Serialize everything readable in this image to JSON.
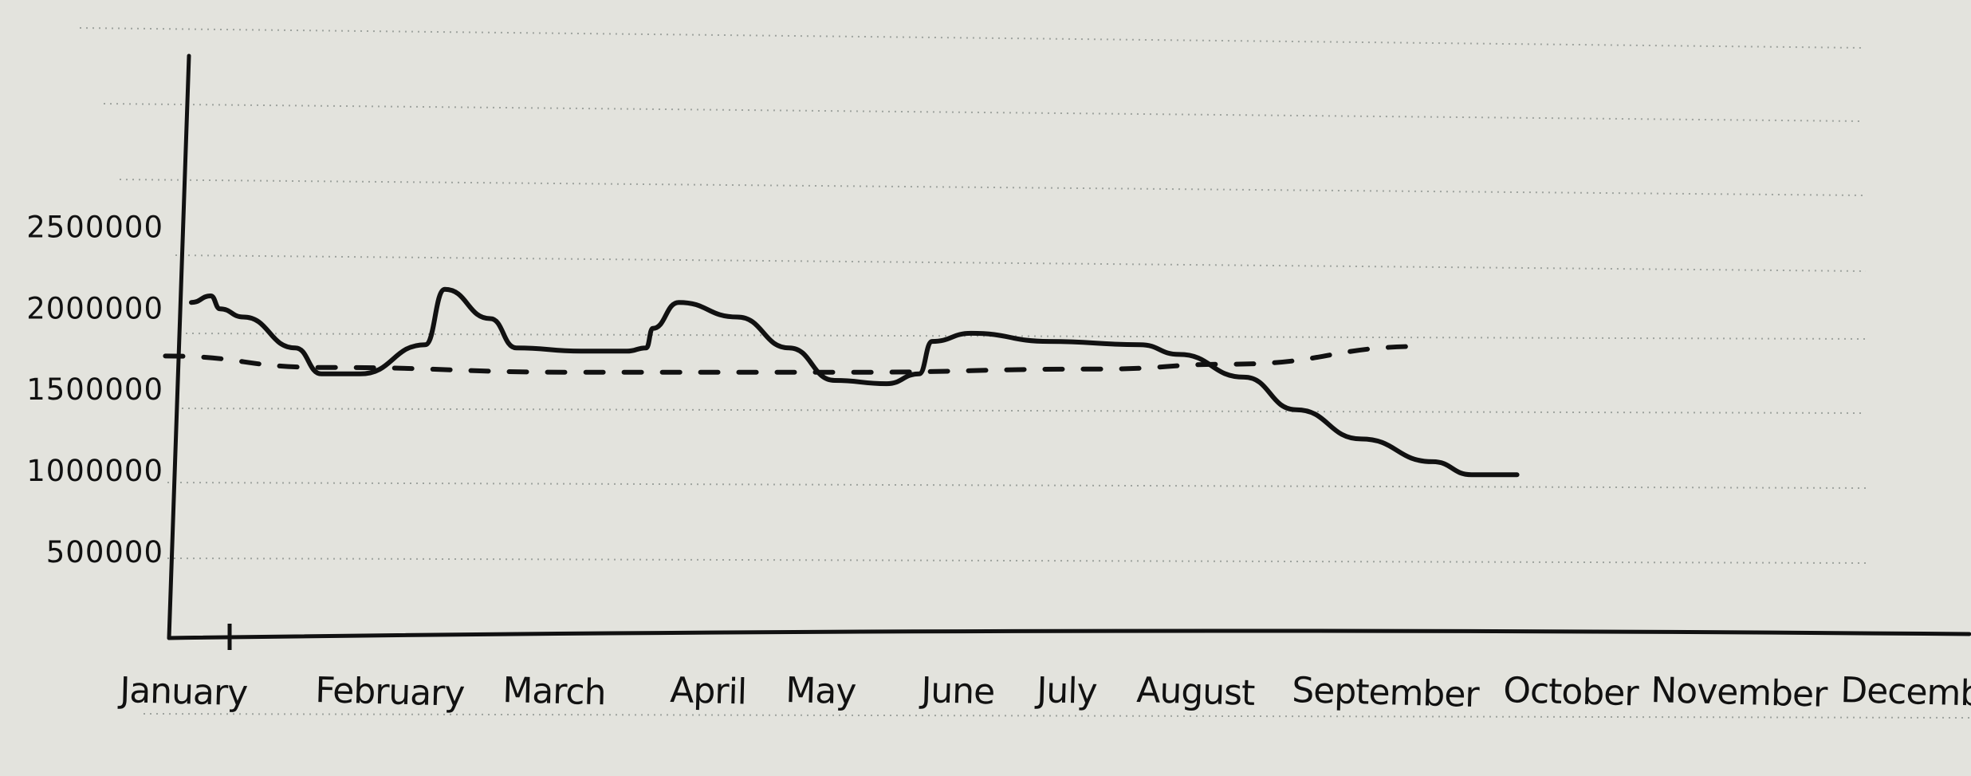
{
  "chart_data": {
    "type": "line",
    "title": "",
    "xlabel": "",
    "ylabel": "",
    "categories": [
      "January",
      "February",
      "March",
      "April",
      "May",
      "June",
      "July",
      "August",
      "September",
      "October",
      "November",
      "Decemb"
    ],
    "y_ticks": [
      {
        "value": 500000,
        "label": "500000"
      },
      {
        "value": 1000000,
        "label": "1000000"
      },
      {
        "value": 1500000,
        "label": "1500000"
      },
      {
        "value": 2000000,
        "label": "2000000"
      },
      {
        "value": 2500000,
        "label": "2500000"
      }
    ],
    "ylim": [
      0,
      3900000
    ],
    "grid": true,
    "legend": "none",
    "series": [
      {
        "style": "solid",
        "color": "#111111",
        "points": [
          [
            0.0,
            2040000
          ],
          [
            0.15,
            2080000
          ],
          [
            0.22,
            2000000
          ],
          [
            0.4,
            1950000
          ],
          [
            0.8,
            1760000
          ],
          [
            1.0,
            1600000
          ],
          [
            1.3,
            1600000
          ],
          [
            1.8,
            1780000
          ],
          [
            1.95,
            2120000
          ],
          [
            2.3,
            1940000
          ],
          [
            2.5,
            1760000
          ],
          [
            3.0,
            1740000
          ],
          [
            3.35,
            1740000
          ],
          [
            3.5,
            1760000
          ],
          [
            3.55,
            1880000
          ],
          [
            3.75,
            2040000
          ],
          [
            4.2,
            1950000
          ],
          [
            4.6,
            1760000
          ],
          [
            4.95,
            1560000
          ],
          [
            5.35,
            1540000
          ],
          [
            5.6,
            1600000
          ],
          [
            5.7,
            1800000
          ],
          [
            6.0,
            1850000
          ],
          [
            6.6,
            1800000
          ],
          [
            7.3,
            1780000
          ],
          [
            7.6,
            1720000
          ],
          [
            8.1,
            1580000
          ],
          [
            8.5,
            1380000
          ],
          [
            9.0,
            1200000
          ],
          [
            9.55,
            1060000
          ],
          [
            9.85,
            980000
          ],
          [
            10.2,
            980000
          ]
        ]
      },
      {
        "style": "dashed",
        "color": "#111111",
        "points": [
          [
            -0.2,
            1710000
          ],
          [
            1.0,
            1640000
          ],
          [
            3.0,
            1610000
          ],
          [
            5.0,
            1610000
          ],
          [
            7.0,
            1630000
          ],
          [
            8.0,
            1660000
          ],
          [
            9.5,
            1770000
          ]
        ]
      }
    ]
  }
}
